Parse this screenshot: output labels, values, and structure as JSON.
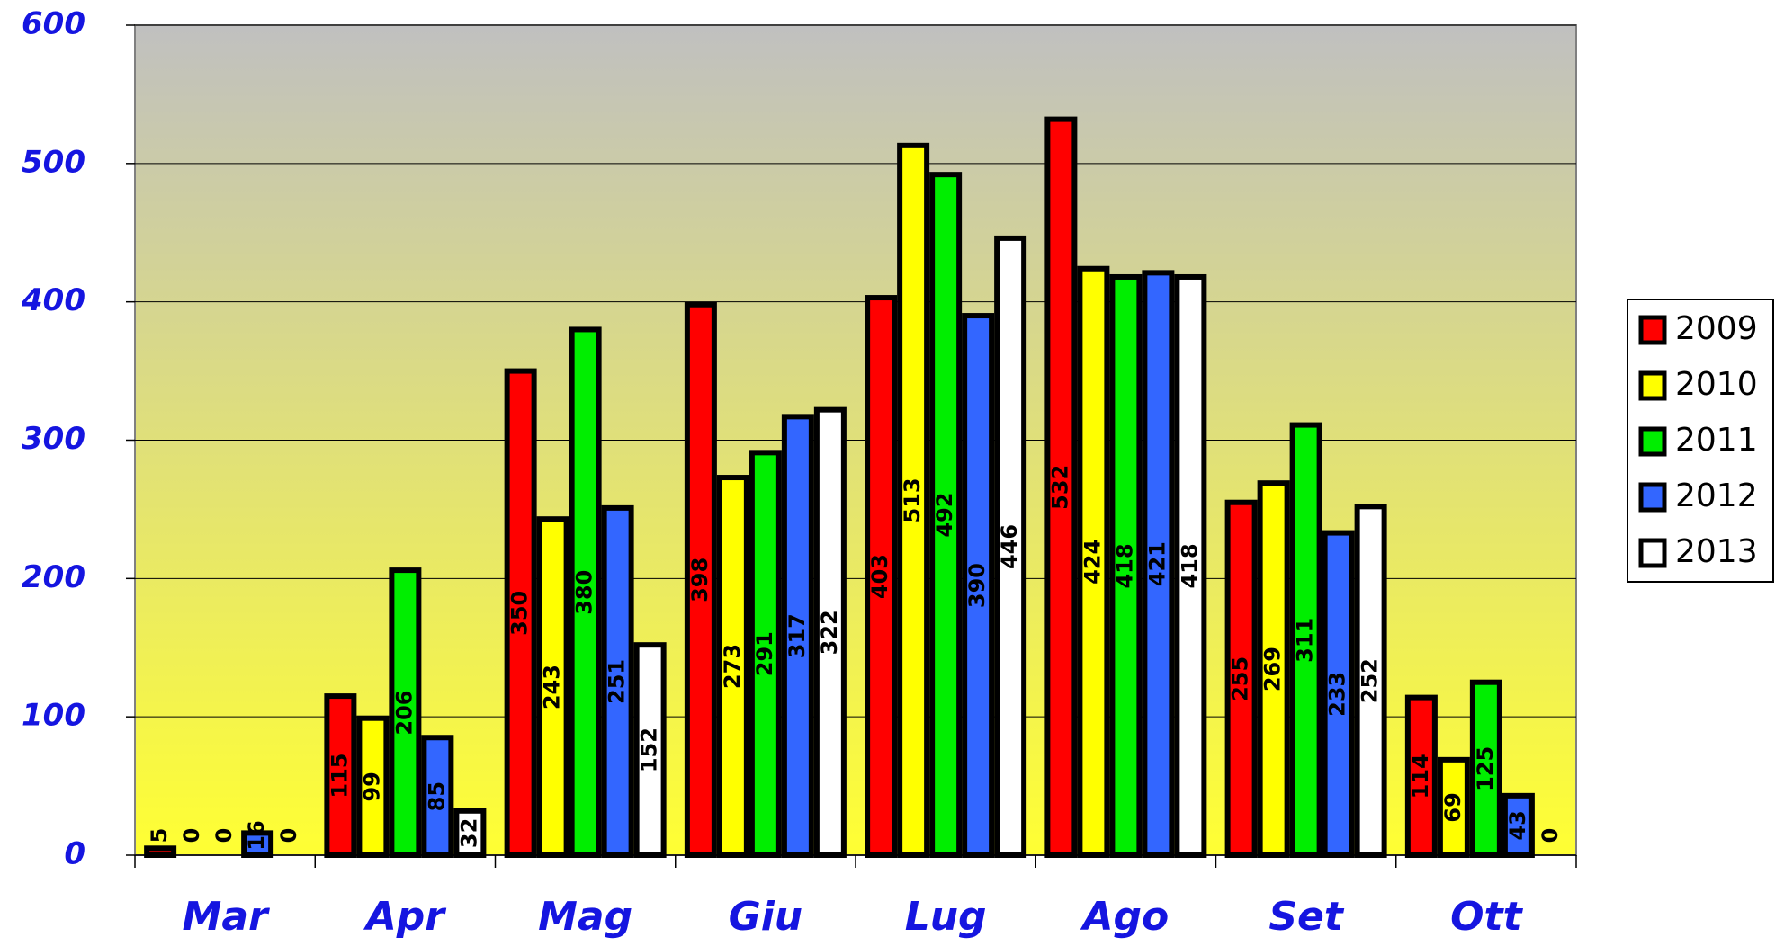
{
  "chart_data": {
    "type": "bar",
    "categories": [
      "Mar",
      "Apr",
      "Mag",
      "Giu",
      "Lug",
      "Ago",
      "Set",
      "Ott"
    ],
    "series": [
      {
        "name": "2009",
        "color": "#ff0000",
        "values": [
          5,
          115,
          350,
          398,
          403,
          532,
          255,
          114
        ]
      },
      {
        "name": "2010",
        "color": "#ffff00",
        "values": [
          0,
          99,
          243,
          273,
          513,
          424,
          269,
          69
        ]
      },
      {
        "name": "2011",
        "color": "#00ee00",
        "values": [
          0,
          206,
          380,
          291,
          492,
          418,
          311,
          125
        ]
      },
      {
        "name": "2012",
        "color": "#3366ff",
        "values": [
          16,
          85,
          251,
          317,
          390,
          421,
          233,
          43
        ]
      },
      {
        "name": "2013",
        "color": "#ffffff",
        "values": [
          0,
          32,
          152,
          322,
          446,
          418,
          252,
          0
        ]
      }
    ],
    "ylim": [
      0,
      600
    ],
    "yticks": [
      0,
      100,
      200,
      300,
      400,
      500,
      600
    ],
    "grid": true,
    "legend": "right"
  }
}
